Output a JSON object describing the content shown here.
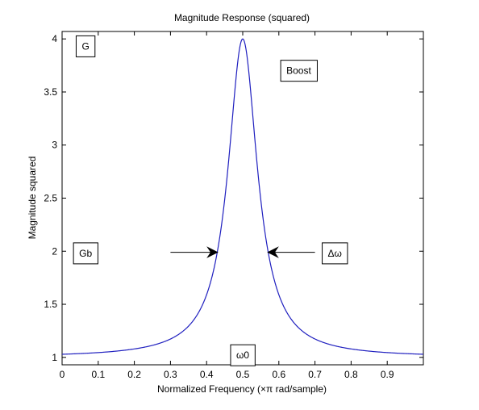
{
  "chart_data": {
    "type": "line",
    "title": "Magnitude Response (squared)",
    "xlabel": "Normalized Frequency (×π rad/sample)",
    "ylabel": "Magnitude squared",
    "xlim": [
      0,
      1
    ],
    "ylim": [
      0.93,
      4.07
    ],
    "x_ticks": [
      0,
      0.1,
      0.2,
      0.3,
      0.4,
      0.5,
      0.6,
      0.7,
      0.8,
      0.9
    ],
    "x_tick_labels": [
      "0",
      "0.1",
      "0.2",
      "0.3",
      "0.4",
      "0.5",
      "0.6",
      "0.7",
      "0.8",
      "0.9"
    ],
    "y_ticks": [
      1,
      1.5,
      2,
      2.5,
      3,
      3.5,
      4
    ],
    "y_tick_labels": [
      "1",
      "1.5",
      "2",
      "2.5",
      "3",
      "3.5",
      "4"
    ],
    "grid": false,
    "series_color": "#1f1fbf",
    "curve": {
      "peak_frequency": 0.5,
      "peak_value": 4,
      "baseline_value": 1,
      "bandwidth_at_level_2": 0.14
    },
    "annotations": [
      {
        "text": "G",
        "x": 0.065,
        "y": 3.93,
        "boxed": true
      },
      {
        "text": "Boost",
        "x": 0.655,
        "y": 3.7,
        "boxed": true
      },
      {
        "text": "Gb",
        "x": 0.065,
        "y": 1.98,
        "boxed": true
      },
      {
        "text": "Δω",
        "x": 0.755,
        "y": 1.98,
        "boxed": true
      },
      {
        "text": "ω0",
        "x": 0.5,
        "y": 1.02,
        "boxed": true
      }
    ],
    "arrows": [
      {
        "from": [
          0.3,
          1.99
        ],
        "to": [
          0.43,
          1.99
        ]
      },
      {
        "from": [
          0.7,
          1.99
        ],
        "to": [
          0.57,
          1.99
        ]
      }
    ]
  }
}
